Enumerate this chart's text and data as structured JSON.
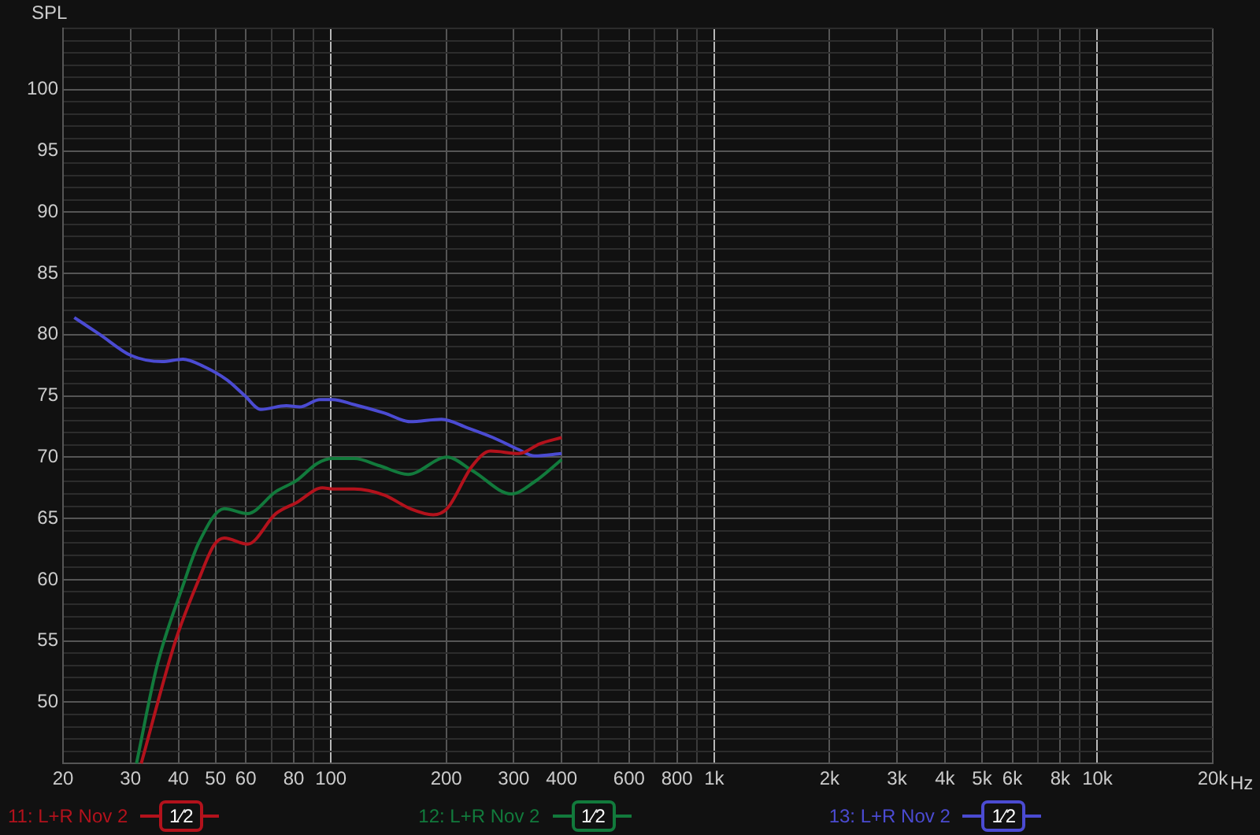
{
  "chart_data": {
    "type": "line",
    "ylabel": "SPL",
    "log": "x",
    "grid": true,
    "legend": "bottom",
    "marker": "none",
    "xlim": [
      20,
      20000
    ],
    "ylim": [
      45,
      105
    ],
    "xticks": [
      {
        "value": 20,
        "label": "20"
      },
      {
        "value": 30,
        "label": "30"
      },
      {
        "value": 40,
        "label": "40"
      },
      {
        "value": 50,
        "label": "50"
      },
      {
        "value": 60,
        "label": "60"
      },
      {
        "value": 70,
        "label": null
      },
      {
        "value": 80,
        "label": "80"
      },
      {
        "value": 90,
        "label": null
      },
      {
        "value": 100,
        "label": "100"
      },
      {
        "value": 200,
        "label": "200"
      },
      {
        "value": 300,
        "label": "300"
      },
      {
        "value": 400,
        "label": "400"
      },
      {
        "value": 500,
        "label": null
      },
      {
        "value": 600,
        "label": "600"
      },
      {
        "value": 700,
        "label": null
      },
      {
        "value": 800,
        "label": "800"
      },
      {
        "value": 900,
        "label": null
      },
      {
        "value": 1000,
        "label": "1k"
      },
      {
        "value": 2000,
        "label": "2k"
      },
      {
        "value": 3000,
        "label": "3k"
      },
      {
        "value": 4000,
        "label": "4k"
      },
      {
        "value": 5000,
        "label": "5k"
      },
      {
        "value": 6000,
        "label": "6k"
      },
      {
        "value": 7000,
        "label": null
      },
      {
        "value": 8000,
        "label": "8k"
      },
      {
        "value": 9000,
        "label": null
      },
      {
        "value": 10000,
        "label": "10k"
      },
      {
        "value": 20000,
        "label": "20k"
      }
    ],
    "xlabel": "Hz",
    "yticks": [
      50,
      55,
      60,
      65,
      70,
      75,
      80,
      85,
      90,
      95,
      100
    ],
    "annotations": [
      "1⁄2",
      "1⁄2",
      "1⁄2"
    ],
    "series": [
      {
        "name": "11: L+R Nov 2",
        "color": "#b3121c",
        "x": [
          32,
          39.3,
          45.2,
          49.5,
          52.7,
          60.6,
          71.9,
          81.4,
          95,
          101,
          115,
          138,
          161,
          185,
          201,
          234,
          261,
          310,
          351,
          400
        ],
        "values": [
          45.0,
          55.0,
          60.0,
          62.8,
          63.4,
          62.9,
          65.4,
          66.3,
          67.5,
          67.4,
          67.4,
          66.9,
          65.8,
          65.3,
          65.8,
          69.3,
          70.5,
          70.3,
          71.1,
          71.6
        ]
      },
      {
        "name": "12: L+R Nov 2",
        "color": "#127a3c",
        "x": [
          31.1,
          35.2,
          41.1,
          45.2,
          52.7,
          60.6,
          71.9,
          81.4,
          92.2,
          101,
          115,
          134,
          159,
          201,
          234,
          296,
          340,
          400
        ],
        "values": [
          45.0,
          53.0,
          59.5,
          63.0,
          65.8,
          65.4,
          67.2,
          68.1,
          69.5,
          69.9,
          69.9,
          69.3,
          68.6,
          70.0,
          68.9,
          67.0,
          68.0,
          69.8
        ]
      },
      {
        "name": "13: L+R Nov 2",
        "color": "#4b4bd2",
        "x": [
          21.4,
          25,
          30.1,
          36.3,
          41.1,
          46.6,
          53.6,
          59.7,
          65.6,
          76.5,
          82.8,
          93.7,
          101,
          114.7,
          138,
          161,
          194.5,
          227,
          265,
          310,
          340,
          400
        ],
        "values": [
          81.4,
          80.0,
          78.3,
          77.8,
          78.0,
          77.4,
          76.3,
          75.0,
          73.9,
          74.2,
          74.1,
          74.7,
          74.7,
          74.3,
          73.6,
          72.9,
          73.1,
          72.4,
          71.6,
          70.6,
          70.1,
          70.3
        ]
      }
    ]
  }
}
